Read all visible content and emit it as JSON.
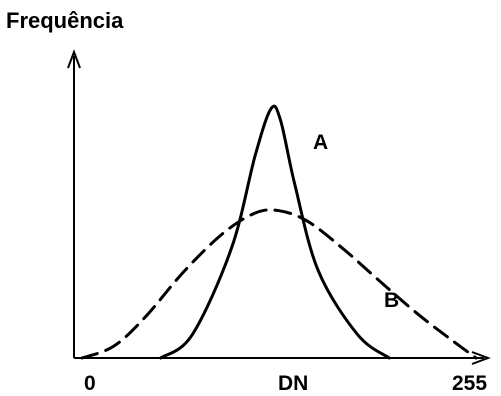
{
  "chart_data": {
    "type": "line",
    "title": "",
    "ylabel": "Frequência",
    "xlabel": "DN",
    "x_ticks": [
      "0",
      "255"
    ],
    "xlim": [
      0,
      255
    ],
    "grid": false,
    "legend": "none",
    "series": [
      {
        "name": "A",
        "line_style": "solid",
        "color": "#000000",
        "shape": "narrow peak",
        "points": [
          [
            55,
            0
          ],
          [
            75,
            20
          ],
          [
            100,
            95
          ],
          [
            115,
            175
          ],
          [
            125,
            215
          ],
          [
            131,
            205
          ],
          [
            140,
            150
          ],
          [
            155,
            75
          ],
          [
            180,
            20
          ],
          [
            200,
            0
          ]
        ]
      },
      {
        "name": "B",
        "line_style": "dashed",
        "color": "#000000",
        "shape": "broad peak",
        "points": [
          [
            5,
            0
          ],
          [
            25,
            10
          ],
          [
            45,
            35
          ],
          [
            70,
            75
          ],
          [
            95,
            108
          ],
          [
            115,
            125
          ],
          [
            130,
            127
          ],
          [
            148,
            118
          ],
          [
            170,
            95
          ],
          [
            195,
            65
          ],
          [
            218,
            38
          ],
          [
            240,
            15
          ],
          [
            255,
            0
          ]
        ]
      }
    ]
  }
}
